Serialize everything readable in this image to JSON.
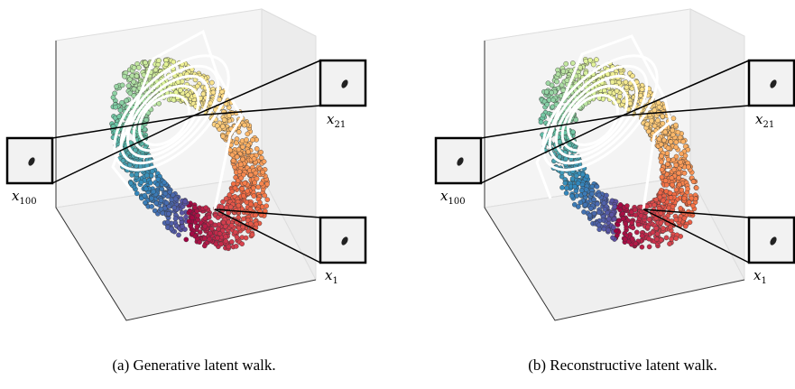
{
  "panels": [
    {
      "caption": "(a) Generative latent walk.",
      "labels": {
        "left": {
          "base": "x",
          "sub": "100"
        },
        "top": {
          "base": "x",
          "sub": "21"
        },
        "bottom": {
          "base": "x",
          "sub": "1"
        }
      }
    },
    {
      "caption": "(b) Reconstructive latent walk.",
      "labels": {
        "left": {
          "base": "x",
          "sub": "100"
        },
        "top": {
          "base": "x",
          "sub": "21"
        },
        "bottom": {
          "base": "x",
          "sub": "1"
        }
      }
    }
  ]
}
